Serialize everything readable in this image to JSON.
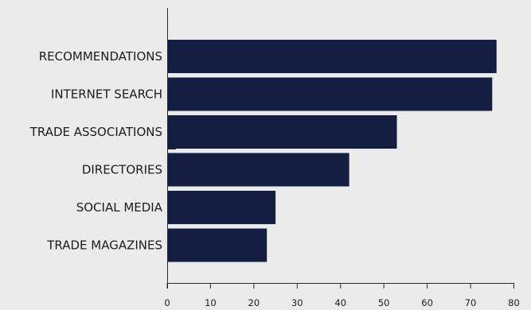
{
  "chart_data": {
    "type": "bar",
    "orientation": "horizontal",
    "title": "",
    "xlabel": "",
    "ylabel": "",
    "categories": [
      "RECOMMENDATIONS",
      "INTERNET SEARCH",
      "TRADE ASSOCIATIONS",
      "DIRECTORIES",
      "SOCIAL MEDIA",
      "TRADE MAGAZINES"
    ],
    "values": [
      76,
      75,
      53,
      42,
      25,
      23
    ],
    "xlim": [
      0,
      80
    ],
    "xticks": [
      "0",
      "10",
      "20",
      "30",
      "40",
      "50",
      "60",
      "70",
      "80"
    ],
    "grid": false,
    "legend": "none",
    "colors": {
      "bar": "#141e43",
      "background": "#ebebeb",
      "axis": "#2b2b2b",
      "text": "#1c1c1c"
    }
  }
}
